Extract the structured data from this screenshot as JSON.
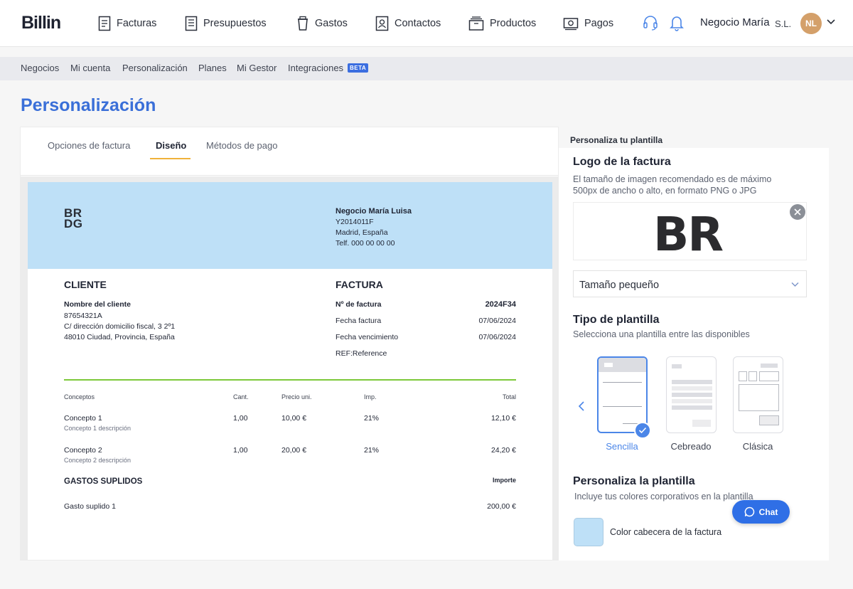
{
  "brand": "Billin",
  "nav": [
    {
      "label": "Facturas",
      "icon": "invoice-icon"
    },
    {
      "label": "Presupuestos",
      "icon": "quote-icon"
    },
    {
      "label": "Gastos",
      "icon": "cup-icon"
    },
    {
      "label": "Contactos",
      "icon": "contact-icon"
    },
    {
      "label": "Productos",
      "icon": "box-icon"
    },
    {
      "label": "Pagos",
      "icon": "money-icon"
    }
  ],
  "user": {
    "business": "Negocio María",
    "suffix": "S.L.",
    "initials": "NL"
  },
  "subnav": [
    "Negocios",
    "Mi cuenta",
    "Personalización",
    "Planes",
    "Mi Gestor",
    "Integraciones"
  ],
  "beta_badge": "BETA",
  "page_title": "Personalización",
  "tabs": [
    "Opciones de factura",
    "Diseño",
    "Métodos de pago"
  ],
  "invoice": {
    "logo_line1": "BR",
    "logo_line2": "DG",
    "business": {
      "name": "Negocio María Luisa",
      "id": "Y2014011F",
      "city": "Madrid, España",
      "phone": "Telf. 000 00 00 00"
    },
    "client": {
      "heading": "CLIENTE",
      "name": "Nombre del cliente",
      "id": "87654321A",
      "address": "C/ dirección domicilio fiscal, 3 2º1",
      "city": "48010 Ciudad, Provincia, España"
    },
    "factura": {
      "heading": "FACTURA",
      "number_label": "Nº de factura",
      "number": "2024F34",
      "date_label": "Fecha factura",
      "date": "07/06/2024",
      "due_label": "Fecha vencimiento",
      "due": "07/06/2024",
      "ref": "REF:Reference"
    },
    "columns": [
      "Conceptos",
      "Cant.",
      "Precio uni.",
      "Imp.",
      "Total"
    ],
    "rows": [
      {
        "concept": "Concepto 1",
        "desc": "Concepto 1 descripción",
        "qty": "1,00",
        "price": "10,00 €",
        "tax": "21%",
        "total": "12,10 €"
      },
      {
        "concept": "Concepto 2",
        "desc": "Concepto 2 descripción",
        "qty": "1,00",
        "price": "20,00 €",
        "tax": "21%",
        "total": "24,20 €"
      }
    ],
    "gastos": {
      "heading": "GASTOS SUPLIDOS",
      "amount_label": "Importe",
      "item": "Gasto suplido 1",
      "amount": "200,00 €"
    }
  },
  "right": {
    "panel_title": "Personaliza tu plantilla",
    "logo_heading": "Logo de la factura",
    "logo_hint_1": "El tamaño de imagen recomendado es de máximo",
    "logo_hint_2": "500px de ancho o alto, en formato PNG o JPG",
    "logo_preview": "BR",
    "size_select": "Tamaño pequeño",
    "template_heading": "Tipo de plantilla",
    "template_hint": "Selecciona una plantilla entre las disponibles",
    "templates": [
      "Sencilla",
      "Cebreado",
      "Clásica"
    ],
    "customize_heading": "Personaliza la plantilla",
    "customize_hint": "Incluye tus colores corporativos en la plantilla",
    "color_label": "Color cabecera de la factura",
    "header_color": "#bee0f7"
  },
  "chat_label": "Chat"
}
